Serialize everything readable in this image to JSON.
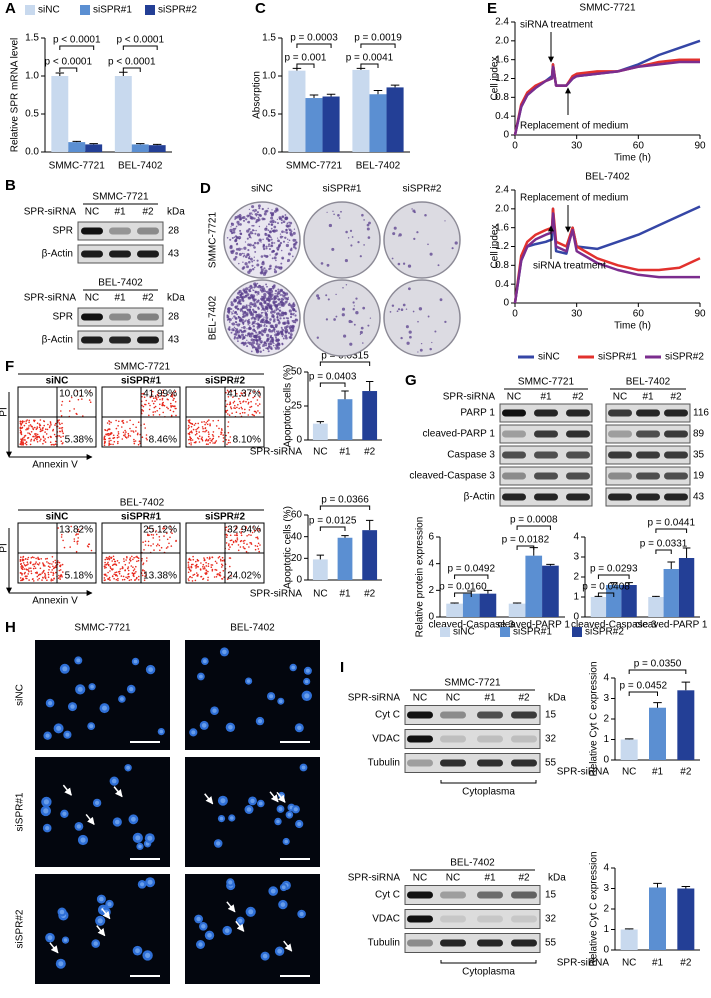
{
  "panel_labels": [
    "A",
    "B",
    "C",
    "D",
    "E",
    "F",
    "G",
    "H",
    "I"
  ],
  "chart_data": [
    {
      "type": "bar",
      "ylabel": "Relative SPR mRNA level",
      "categories": [
        "SMMC-7721",
        "BEL-7402"
      ],
      "series": [
        {
          "name": "siNC",
          "color": "#c8d9ee",
          "values": [
            1.0,
            1.0
          ],
          "errors": [
            0.04,
            0.05
          ]
        },
        {
          "name": "siSPR#1",
          "color": "#5b8fd2",
          "values": [
            0.13,
            0.1
          ],
          "errors": [
            0.01,
            0.01
          ]
        },
        {
          "name": "siSPR#2",
          "color": "#233f96",
          "values": [
            0.1,
            0.09
          ],
          "errors": [
            0.01,
            0.01
          ]
        }
      ],
      "ylim": [
        0,
        1.5
      ],
      "yticks": [
        {
          "value": 0,
          "label": "0.0"
        },
        0.5,
        {
          "value": 1,
          "label": "1.0"
        },
        1.5
      ],
      "annotations": [
        "p < 0.0001",
        "p < 0.0001",
        "p < 0.0001",
        "p < 0.0001"
      ]
    },
    {
      "type": "bar",
      "ylabel": "Absorption",
      "categories": [
        "SMMC-7721",
        "BEL-7402"
      ],
      "series": [
        {
          "color": "#c8d9ee",
          "values": [
            1.07,
            1.08
          ],
          "errors": [
            0.03,
            0.02
          ]
        },
        {
          "color": "#5b8fd2",
          "values": [
            0.71,
            0.76
          ],
          "errors": [
            0.04,
            0.05
          ]
        },
        {
          "color": "#233f96",
          "values": [
            0.73,
            0.85
          ],
          "errors": [
            0.03,
            0.03
          ]
        }
      ],
      "ylim": [
        0,
        1.5
      ],
      "yticks": [
        {
          "value": 0,
          "label": "0.0"
        },
        0.5,
        {
          "value": 1,
          "label": "1.0"
        },
        1.5
      ],
      "annotations": [
        "p = 0.0003",
        "p = 0.001",
        "p = 0.0019",
        "p = 0.0041"
      ]
    },
    {
      "type": "line",
      "title": "SMMC-7721",
      "xlabel": "Time (h)",
      "ylabel": "Cell index",
      "x": [
        0,
        3,
        6,
        10,
        15,
        18,
        18.5,
        20,
        25,
        28,
        30,
        40,
        50,
        60,
        70,
        80,
        90
      ],
      "series": [
        {
          "name": "siNC",
          "color": "#3546a6",
          "values": [
            0,
            0.6,
            0.85,
            1.0,
            1.15,
            1.25,
            1.5,
            1.05,
            1.05,
            1.2,
            1.25,
            1.3,
            1.35,
            1.5,
            1.7,
            1.85,
            2.0
          ]
        },
        {
          "name": "siSPR#1",
          "color": "#e2312d",
          "values": [
            0,
            0.65,
            0.9,
            1.05,
            1.15,
            1.2,
            1.5,
            1.05,
            1.05,
            1.25,
            1.3,
            1.35,
            1.35,
            1.45,
            1.55,
            1.6,
            1.6
          ]
        },
        {
          "name": "siSPR#2",
          "color": "#7b2d8e",
          "values": [
            0,
            0.6,
            0.85,
            1.0,
            1.15,
            1.2,
            1.45,
            1.05,
            1.05,
            1.2,
            1.25,
            1.3,
            1.35,
            1.45,
            1.5,
            1.55,
            1.55
          ]
        }
      ],
      "xlim": [
        0,
        90
      ],
      "xticks": [
        0,
        30,
        60,
        90
      ],
      "ylim": [
        0,
        2.4
      ],
      "yticks": [
        0,
        0.4,
        0.8,
        1.2,
        1.6,
        {
          "value": 2,
          "label": "2.0"
        },
        2.4
      ],
      "annotations": [
        "siRNA treatment",
        "Replacement of medium"
      ]
    },
    {
      "type": "line",
      "title": "BEL-7402",
      "xlabel": "Time (h)",
      "ylabel": "Cell index",
      "x": [
        0,
        3,
        6,
        10,
        15,
        18,
        18.5,
        20,
        25,
        28,
        30,
        40,
        50,
        60,
        70,
        80,
        90
      ],
      "series": [
        {
          "color": "#3546a6",
          "values": [
            0,
            0.9,
            1.2,
            1.25,
            1.3,
            1.35,
            2.0,
            1.1,
            1.05,
            1.6,
            1.2,
            1.15,
            1.3,
            1.45,
            1.65,
            1.85,
            2.05
          ]
        },
        {
          "color": "#e2312d",
          "values": [
            0,
            1.0,
            1.3,
            1.45,
            1.55,
            1.6,
            2.0,
            1.3,
            1.2,
            1.6,
            1.2,
            0.95,
            0.8,
            0.7,
            0.7,
            0.75,
            0.95
          ]
        },
        {
          "color": "#7b2d8e",
          "values": [
            0,
            0.9,
            1.2,
            1.35,
            1.45,
            1.5,
            1.9,
            1.2,
            1.1,
            1.55,
            1.1,
            0.85,
            0.7,
            0.6,
            0.55,
            0.55,
            0.55
          ]
        }
      ],
      "xlim": [
        0,
        90
      ],
      "xticks": [
        0,
        30,
        60,
        90
      ],
      "ylim": [
        0,
        2.4
      ],
      "yticks": [
        0,
        0.4,
        0.8,
        1.2,
        1.6,
        {
          "value": 2,
          "label": "2.0"
        },
        2.4
      ],
      "annotations": [
        "Replacement of medium",
        "siRNA treatment"
      ]
    },
    {
      "type": "bar",
      "ylabel": "Apoptotic cells (%)",
      "xlabel": "SPR-siRNA",
      "categories": [
        "NC",
        "#1",
        "#2"
      ],
      "values": [
        12,
        30,
        36
      ],
      "errors": [
        1.5,
        6,
        7
      ],
      "colors": [
        "#c8d9ee",
        "#5b8fd2",
        "#233f96"
      ],
      "ylim": [
        0,
        50
      ],
      "yticks": [
        0,
        25,
        50
      ],
      "annotations": [
        "p = 0.0315",
        "p = 0.0403"
      ]
    },
    {
      "type": "bar",
      "ylabel": "Apoptotic cells (%)",
      "xlabel": "SPR-siRNA",
      "categories": [
        "NC",
        "#1",
        "#2"
      ],
      "values": [
        19,
        39,
        46
      ],
      "errors": [
        4,
        2,
        9
      ],
      "colors": [
        "#c8d9ee",
        "#5b8fd2",
        "#233f96"
      ],
      "ylim": [
        0,
        60
      ],
      "yticks": [
        0,
        20,
        40,
        60
      ],
      "annotations": [
        "p = 0.0366",
        "p = 0.0125"
      ]
    },
    {
      "type": "bar",
      "ylabel": "Relative protein expression",
      "categories": [
        "cleaved-Caspase 3",
        "cleaved-PARP 1"
      ],
      "series": [
        {
          "name": "siNC",
          "color": "#c8d9ee",
          "values": [
            1,
            1
          ],
          "errors": [
            0.05,
            0.05
          ]
        },
        {
          "name": "siSPR#1",
          "color": "#5b8fd2",
          "values": [
            1.75,
            4.6
          ],
          "errors": [
            0.2,
            0.6
          ]
        },
        {
          "name": "siSPR#2",
          "color": "#233f96",
          "values": [
            1.75,
            3.85
          ],
          "errors": [
            0.25,
            0.1
          ]
        }
      ],
      "ylim": [
        0,
        6
      ],
      "yticks": [
        0,
        2,
        4,
        6
      ],
      "annotations": [
        "p = 0.0492",
        "p = 0.0160",
        "p = 0.0008",
        "p = 0.0182"
      ]
    },
    {
      "type": "bar",
      "categories": [
        "cleaved-Caspase 3",
        "cleaved-PARP 1"
      ],
      "series": [
        {
          "color": "#c8d9ee",
          "values": [
            1,
            1
          ],
          "errors": [
            0.03,
            0.03
          ]
        },
        {
          "color": "#5b8fd2",
          "values": [
            1.6,
            2.4
          ],
          "errors": [
            0.12,
            0.35
          ]
        },
        {
          "color": "#233f96",
          "values": [
            1.6,
            2.95
          ],
          "errors": [
            0.12,
            0.5
          ]
        }
      ],
      "ylim": [
        0,
        4
      ],
      "yticks": [
        0,
        1,
        2,
        3,
        4
      ],
      "annotations": [
        "p = 0.0293",
        "p = 0.0408",
        "p = 0.0441",
        "p = 0.0331"
      ]
    },
    {
      "type": "bar",
      "ylabel": "Relative Cyt C expression",
      "xlabel": "SPR-siRNA",
      "categories": [
        "NC",
        "#1",
        "#2"
      ],
      "values": [
        1,
        2.55,
        3.4
      ],
      "errors": [
        0.03,
        0.25,
        0.4
      ],
      "colors": [
        "#c8d9ee",
        "#5b8fd2",
        "#233f96"
      ],
      "ylim": [
        0,
        4
      ],
      "yticks": [
        0,
        1,
        2,
        3,
        4
      ],
      "annotations": [
        "p = 0.0350",
        "p = 0.0452"
      ]
    },
    {
      "type": "bar",
      "ylabel": "Relative Cyt C expression",
      "xlabel": "SPR-siRNA",
      "categories": [
        "NC",
        "#1",
        "#2"
      ],
      "values": [
        1,
        3.05,
        3.0
      ],
      "errors": [
        0.03,
        0.2,
        0.1
      ],
      "colors": [
        "#c8d9ee",
        "#5b8fd2",
        "#233f96"
      ],
      "ylim": [
        0,
        4
      ],
      "yticks": [
        0,
        1,
        2,
        3,
        4
      ]
    }
  ],
  "blots": {
    "B": [
      {
        "title": "SMMC-7721",
        "lane_header": "SPR-siRNA",
        "lanes": [
          "NC",
          "#1",
          "#2"
        ],
        "unit": "kDa",
        "rows": [
          {
            "name": "SPR",
            "kda": 28
          },
          {
            "name": "β-Actin",
            "kda": 43
          }
        ]
      },
      {
        "title": "BEL-7402",
        "lane_header": "SPR-siRNA",
        "lanes": [
          "NC",
          "#1",
          "#2"
        ],
        "unit": "kDa",
        "rows": [
          {
            "name": "SPR",
            "kda": 28
          },
          {
            "name": "β-Actin",
            "kda": 43
          }
        ]
      }
    ],
    "G": {
      "lane_header": "SPR-siRNA",
      "groups": [
        {
          "title": "SMMC-7721",
          "lanes": [
            "NC",
            "#1",
            "#2"
          ]
        },
        {
          "title": "BEL-7402",
          "lanes": [
            "NC",
            "#1",
            "#2"
          ]
        }
      ],
      "rows": [
        {
          "name": "PARP 1",
          "kda": 116
        },
        {
          "name": "cleaved-PARP 1",
          "kda": 89
        },
        {
          "name": "Caspase 3",
          "kda": 35
        },
        {
          "name": "cleaved-Caspase 3",
          "kda": 19
        },
        {
          "name": "β-Actin",
          "kda": 43
        }
      ]
    },
    "I": [
      {
        "title": "SMMC-7721",
        "lane_header": "SPR-siRNA",
        "lanes": [
          "NC",
          "NC",
          "#1",
          "#2"
        ],
        "unit": "kDa",
        "rows": [
          {
            "name": "Cyt C",
            "kda": 15
          },
          {
            "name": "VDAC",
            "kda": 32
          },
          {
            "name": "Tubulin",
            "kda": 55
          }
        ],
        "fraction": "Cytoplasma"
      },
      {
        "title": "BEL-7402",
        "lane_header": "SPR-siRNA",
        "lanes": [
          "NC",
          "NC",
          "#1",
          "#2"
        ],
        "unit": "kDa",
        "rows": [
          {
            "name": "Cyt C",
            "kda": 15
          },
          {
            "name": "VDAC",
            "kda": 32
          },
          {
            "name": "Tubulin",
            "kda": 55
          }
        ],
        "fraction": "Cytoplasma"
      }
    ]
  },
  "colony": {
    "columns": [
      "siNC",
      "siSPR#1",
      "siSPR#2"
    ],
    "rows": [
      "SMMC-7721",
      "BEL-7402"
    ]
  },
  "flow": [
    {
      "title": "SMMC-7721",
      "columns": [
        "siNC",
        "siSPR#1",
        "siSPR#2"
      ],
      "quadrants": [
        [
          "10.01%",
          "5.38%"
        ],
        [
          "41.99%",
          "8.46%"
        ],
        [
          "41.37%",
          "8.10%"
        ]
      ]
    },
    {
      "title": "BEL-7402",
      "columns": [
        "siNC",
        "siSPR#1",
        "siSPR#2"
      ],
      "quadrants": [
        [
          "13.82%",
          "5.18%"
        ],
        [
          "25.12%",
          "13.38%"
        ],
        [
          "32.94%",
          "24.02%"
        ]
      ]
    }
  ],
  "flow_axes": {
    "y": "PI",
    "x": "Annexin V"
  },
  "images": {
    "columns": [
      "SMMC-7721",
      "BEL-7402"
    ],
    "rows": [
      "siNC",
      "siSPR#1",
      "siSPR#2"
    ]
  }
}
